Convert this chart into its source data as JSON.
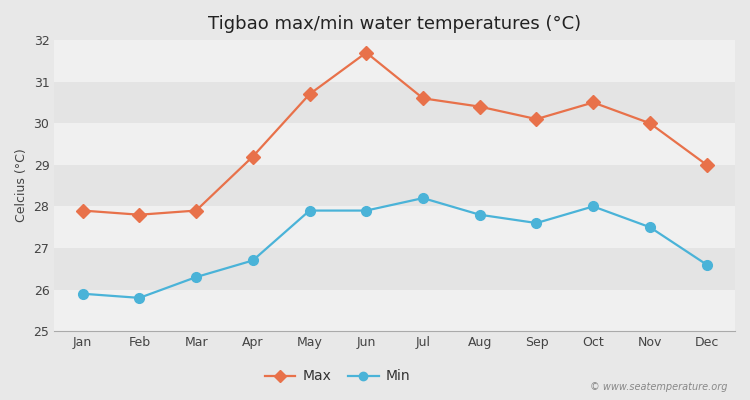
{
  "title": "Tigbao max/min water temperatures (°C)",
  "xlabel": "",
  "ylabel": "Celcius (°C)",
  "months": [
    "Jan",
    "Feb",
    "Mar",
    "Apr",
    "May",
    "Jun",
    "Jul",
    "Aug",
    "Sep",
    "Oct",
    "Nov",
    "Dec"
  ],
  "max_temps": [
    27.9,
    27.8,
    27.9,
    29.2,
    30.7,
    31.7,
    30.6,
    30.4,
    30.1,
    30.5,
    30.0,
    29.0
  ],
  "min_temps": [
    25.9,
    25.8,
    26.3,
    26.7,
    27.9,
    27.9,
    28.2,
    27.8,
    27.6,
    28.0,
    27.5,
    26.6
  ],
  "max_color": "#e8714a",
  "min_color": "#4ab3d8",
  "ylim": [
    25,
    32
  ],
  "yticks": [
    25,
    26,
    27,
    28,
    29,
    30,
    31,
    32
  ],
  "bg_color": "#e8e8e8",
  "plot_bg_color_light": "#f0f0f0",
  "plot_bg_color_dark": "#e4e4e4",
  "grid_color": "#ffffff",
  "watermark": "© www.seatemperature.org",
  "legend_max": "Max",
  "legend_min": "Min",
  "title_fontsize": 13,
  "label_fontsize": 9,
  "tick_fontsize": 9,
  "marker_size": 7,
  "line_width": 1.6
}
